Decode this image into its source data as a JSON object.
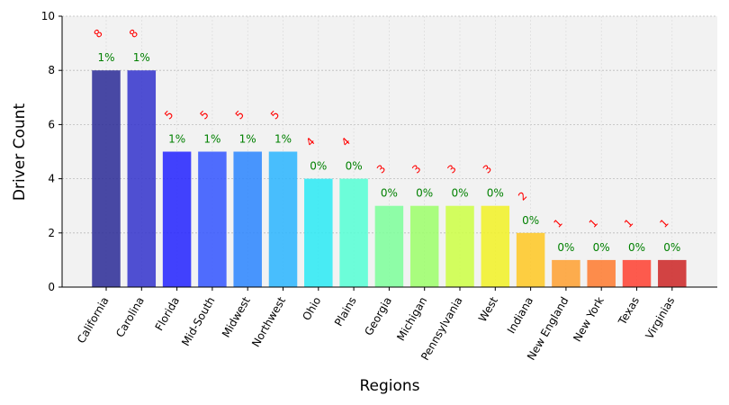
{
  "chart_data": {
    "type": "bar",
    "title": "",
    "xlabel": "Regions",
    "ylabel": "Driver Count",
    "ylim": [
      0,
      10
    ],
    "yticks": [
      0,
      2,
      4,
      6,
      8,
      10
    ],
    "grid": true,
    "categories": [
      "California",
      "Carolina",
      "Florida",
      "Mid-South",
      "Midwest",
      "Northwest",
      "Ohio",
      "Plains",
      "Georgia",
      "Michigan",
      "Pennsylvania",
      "West",
      "Indiana",
      "New England",
      "New York",
      "Texas",
      "Virginias"
    ],
    "values": [
      8,
      8,
      5,
      5,
      5,
      5,
      4,
      4,
      3,
      3,
      3,
      3,
      2,
      1,
      1,
      1,
      1
    ],
    "count_labels": [
      "8",
      "8",
      "5",
      "5",
      "5",
      "5",
      "4",
      "4",
      "3",
      "3",
      "3",
      "3",
      "2",
      "1",
      "1",
      "1",
      "1"
    ],
    "percent_labels": [
      "1%",
      "1%",
      "1%",
      "1%",
      "1%",
      "1%",
      "0%",
      "0%",
      "0%",
      "0%",
      "0%",
      "0%",
      "0%",
      "0%",
      "0%",
      "0%",
      "0%"
    ],
    "bar_colors": [
      "#2a2a96",
      "#3333cc",
      "#2222ff",
      "#3355ff",
      "#2a85ff",
      "#2ab5ff",
      "#2aeaf5",
      "#55ffd5",
      "#7dff9a",
      "#9cff6a",
      "#ccff44",
      "#f2f224",
      "#ffc822",
      "#ffa030",
      "#ff7a2e",
      "#ff4030",
      "#cc2525"
    ],
    "count_label_color": "#ff0000",
    "percent_label_color": "#008000",
    "plot_background": "#f2f2f2"
  }
}
